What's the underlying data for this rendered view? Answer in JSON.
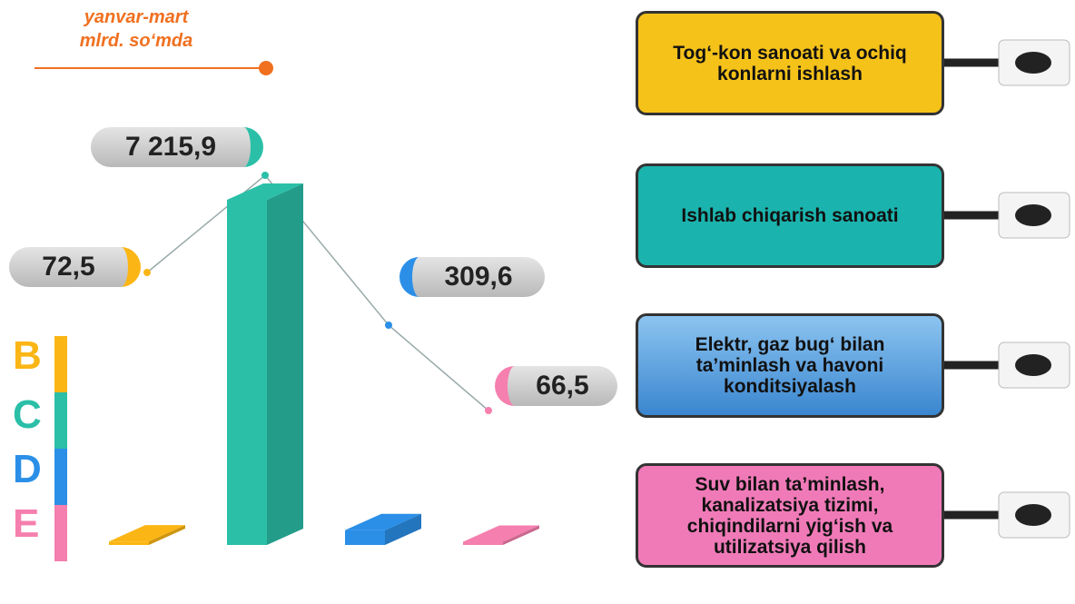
{
  "chart_data": {
    "type": "bar",
    "title": "yanvar-mart",
    "subtitle": "mlrd. so‘mda",
    "codes": [
      "B",
      "C",
      "D",
      "E"
    ],
    "categories": [
      "Tog‘-kon sanoati va ochiq konlarni ishlash",
      "Ishlab chiqarish sanoati",
      "Elektr, gaz bug‘ bilan ta’minlash va havoni konditsiyalash",
      "Suv bilan ta’minlash, kanalizatsiya tizimi, chiqindilarni yig‘ish va utilizatsiya qilish"
    ],
    "values": [
      72.5,
      7215.9,
      309.6,
      66.5
    ],
    "value_labels": [
      "72,5",
      "7 215,9",
      "309,6",
      "66,5"
    ],
    "colors": [
      "#fbb615",
      "#2bbfa8",
      "#2b8fe8",
      "#f57fae"
    ]
  }
}
